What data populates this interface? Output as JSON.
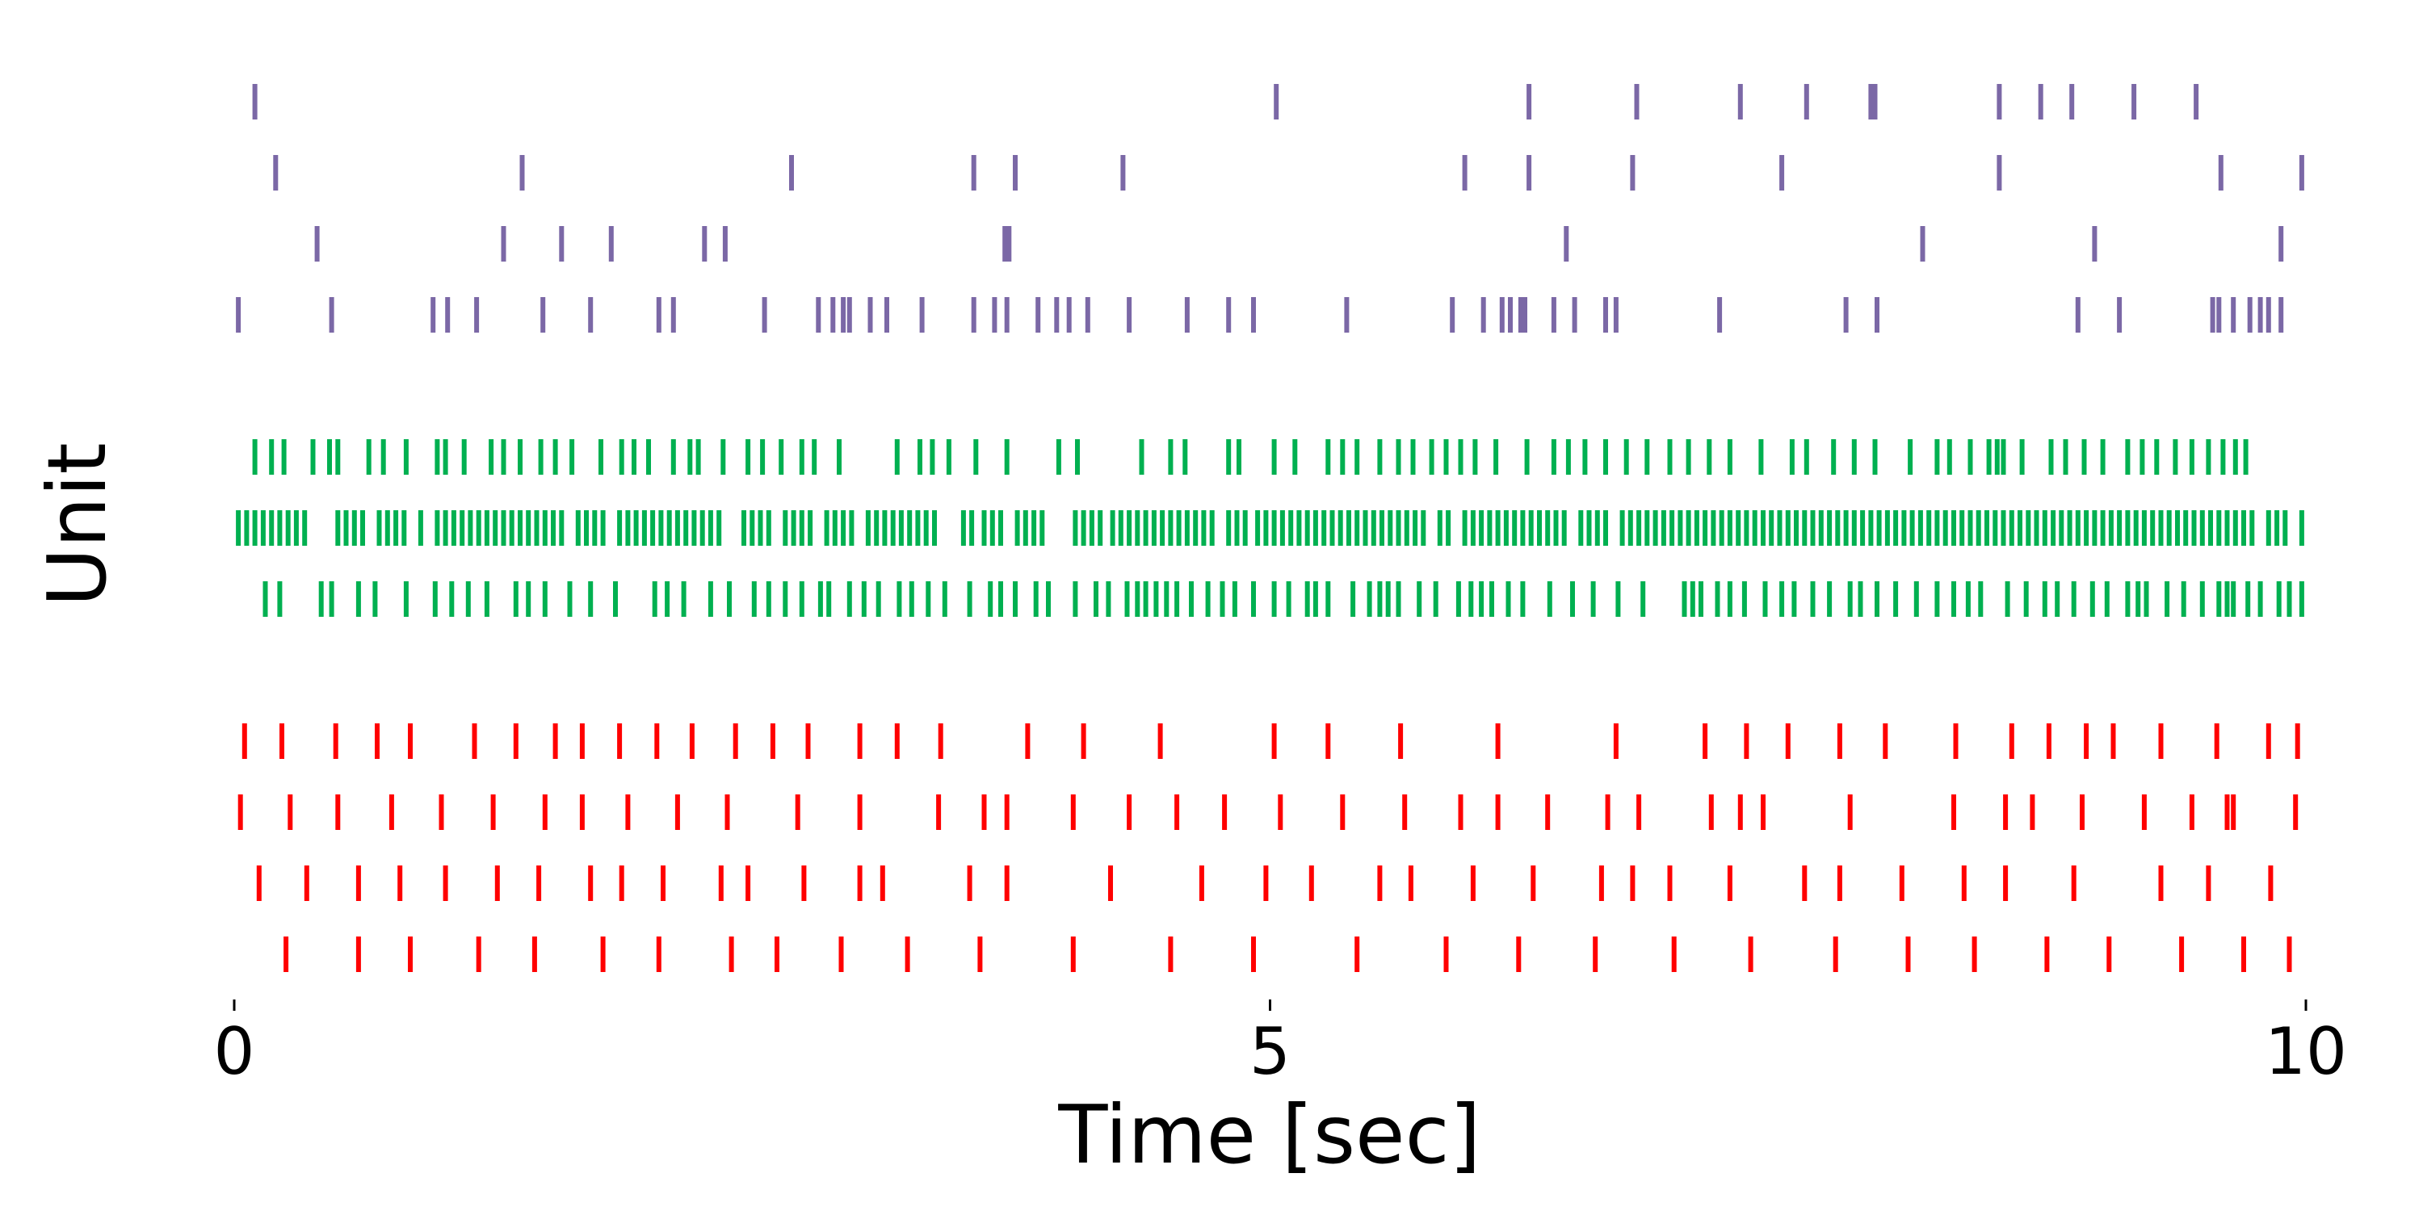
{
  "chart_data": {
    "type": "raster",
    "xlabel": "Time [sec]",
    "ylabel": "Unit",
    "xlim": [
      0,
      10
    ],
    "xticks": [
      0,
      5,
      10
    ],
    "xtick_labels": [
      "0",
      "5",
      "10"
    ],
    "show_y_axis": false,
    "grid": false,
    "groups": [
      {
        "color": "#ff0000",
        "units": [
          {
            "spikes": [
              0.25,
              0.6,
              0.85,
              1.18,
              1.45,
              1.78,
              2.05,
              2.4,
              2.62,
              2.93,
              3.25,
              3.6,
              4.05,
              4.52,
              4.92,
              5.42,
              5.85,
              6.2,
              6.57,
              6.95,
              7.32,
              7.73,
              8.08,
              8.4,
              8.75,
              9.05,
              9.4,
              9.7,
              9.92
            ]
          },
          {
            "spikes": [
              0.12,
              0.35,
              0.6,
              0.8,
              1.02,
              1.27,
              1.47,
              1.72,
              1.87,
              2.07,
              2.35,
              2.48,
              2.75,
              3.02,
              3.13,
              3.55,
              3.73,
              4.23,
              4.67,
              4.98,
              5.2,
              5.53,
              5.68,
              5.98,
              6.27,
              6.6,
              6.75,
              6.93,
              7.22,
              7.58,
              7.75,
              8.05,
              8.35,
              8.55,
              8.88,
              9.3,
              9.53,
              9.83
            ]
          },
          {
            "spikes": [
              0.03,
              0.27,
              0.5,
              0.76,
              1.0,
              1.25,
              1.5,
              1.68,
              1.9,
              2.14,
              2.38,
              2.72,
              3.02,
              3.4,
              3.62,
              3.73,
              4.05,
              4.32,
              4.55,
              4.78,
              5.05,
              5.35,
              5.65,
              5.92,
              6.1,
              6.34,
              6.63,
              6.78,
              7.13,
              7.27,
              7.38,
              7.8,
              8.3,
              8.55,
              8.68,
              8.92,
              9.22,
              9.45,
              9.62,
              9.65,
              9.95
            ]
          },
          {
            "spikes": [
              0.05,
              0.23,
              0.49,
              0.69,
              0.85,
              1.16,
              1.36,
              1.55,
              1.68,
              1.86,
              2.04,
              2.21,
              2.42,
              2.6,
              2.77,
              3.02,
              3.2,
              3.41,
              3.83,
              4.1,
              4.47,
              5.02,
              5.28,
              5.63,
              6.1,
              6.67,
              7.1,
              7.3,
              7.5,
              7.75,
              7.97,
              8.31,
              8.58,
              8.76,
              8.94,
              9.07,
              9.3,
              9.57,
              9.82,
              9.96
            ]
          }
        ]
      },
      {
        "color": "#00b050",
        "units": [
          {
            "spikes": [
              0.15,
              0.22,
              0.42,
              0.47,
              0.6,
              0.68,
              0.83,
              0.97,
              1.05,
              1.13,
              1.22,
              1.36,
              1.42,
              1.5,
              1.62,
              1.72,
              1.84,
              2.03,
              2.09,
              2.17,
              2.3,
              2.39,
              2.51,
              2.58,
              2.66,
              2.74,
              2.83,
              2.87,
              2.97,
              3.04,
              3.11,
              3.21,
              3.27,
              3.35,
              3.43,
              3.55,
              3.65,
              3.7,
              3.77,
              3.87,
              3.93,
              4.06,
              4.16,
              4.22,
              4.31,
              4.36,
              4.4,
              4.45,
              4.5,
              4.55,
              4.62,
              4.7,
              4.77,
              4.83,
              4.92,
              5.02,
              5.09,
              5.18,
              5.22,
              5.28,
              5.4,
              5.48,
              5.53,
              5.57,
              5.62,
              5.72,
              5.8,
              5.91,
              5.97,
              6.02,
              6.07,
              6.15,
              6.22,
              6.35,
              6.46,
              6.56,
              6.68,
              6.8,
              7.0,
              7.04,
              7.08,
              7.16,
              7.22,
              7.29,
              7.39,
              7.47,
              7.53,
              7.62,
              7.7,
              7.8,
              7.85,
              7.93,
              8.02,
              8.12,
              8.22,
              8.3,
              8.37,
              8.43,
              8.56,
              8.65,
              8.74,
              8.8,
              8.88,
              8.97,
              9.04,
              9.14,
              9.19,
              9.23,
              9.33,
              9.41,
              9.5,
              9.58,
              9.62,
              9.65,
              9.72,
              9.78,
              9.87,
              9.92,
              9.98
            ]
          },
          {
            "spikes": [
              0.02,
              0.06,
              0.1,
              0.14,
              0.18,
              0.22,
              0.26,
              0.3,
              0.34,
              0.5,
              0.54,
              0.58,
              0.62,
              0.7,
              0.74,
              0.78,
              0.82,
              0.9,
              0.98,
              1.02,
              1.06,
              1.1,
              1.14,
              1.18,
              1.22,
              1.26,
              1.3,
              1.34,
              1.38,
              1.42,
              1.46,
              1.5,
              1.54,
              1.58,
              1.66,
              1.7,
              1.74,
              1.78,
              1.86,
              1.9,
              1.94,
              1.98,
              2.02,
              2.06,
              2.1,
              2.14,
              2.18,
              2.22,
              2.26,
              2.3,
              2.34,
              2.46,
              2.5,
              2.54,
              2.58,
              2.66,
              2.7,
              2.74,
              2.78,
              2.86,
              2.9,
              2.94,
              2.98,
              3.06,
              3.1,
              3.14,
              3.18,
              3.22,
              3.26,
              3.3,
              3.34,
              3.38,
              3.52,
              3.56,
              3.62,
              3.66,
              3.7,
              3.78,
              3.82,
              3.86,
              3.9,
              4.06,
              4.1,
              4.14,
              4.18,
              4.24,
              4.28,
              4.32,
              4.36,
              4.4,
              4.44,
              4.48,
              4.52,
              4.56,
              4.6,
              4.64,
              4.68,
              4.72,
              4.8,
              4.84,
              4.88,
              4.94,
              4.98,
              5.02,
              5.06,
              5.1,
              5.14,
              5.18,
              5.22,
              5.26,
              5.3,
              5.34,
              5.38,
              5.42,
              5.46,
              5.5,
              5.54,
              5.58,
              5.62,
              5.66,
              5.7,
              5.74,
              5.82,
              5.86,
              5.94,
              5.98,
              6.02,
              6.06,
              6.1,
              6.14,
              6.18,
              6.22,
              6.26,
              6.3,
              6.34,
              6.38,
              6.42,
              6.5,
              6.54,
              6.58,
              6.62,
              6.7,
              6.74,
              6.78,
              6.82,
              6.86,
              6.9,
              6.94,
              6.98,
              7.02,
              7.06,
              7.1,
              7.14,
              7.18,
              7.22,
              7.26,
              7.3,
              7.34,
              7.38,
              7.42,
              7.46,
              7.5,
              7.54,
              7.58,
              7.62,
              7.66,
              7.7,
              7.74,
              7.78,
              7.82,
              7.86,
              7.9,
              7.94,
              7.98,
              8.02,
              8.06,
              8.1,
              8.14,
              8.18,
              8.22,
              8.26,
              8.3,
              8.34,
              8.38,
              8.42,
              8.46,
              8.5,
              8.54,
              8.58,
              8.62,
              8.66,
              8.7,
              8.74,
              8.78,
              8.82,
              8.86,
              8.9,
              8.94,
              8.98,
              9.02,
              9.06,
              9.1,
              9.14,
              9.18,
              9.22,
              9.26,
              9.3,
              9.34,
              9.38,
              9.42,
              9.46,
              9.5,
              9.54,
              9.58,
              9.62,
              9.66,
              9.7,
              9.74,
              9.82,
              9.86,
              9.9,
              9.98
            ]
          },
          {
            "spikes": [
              0.1,
              0.18,
              0.24,
              0.38,
              0.46,
              0.5,
              0.65,
              0.72,
              0.83,
              0.98,
              1.02,
              1.11,
              1.24,
              1.3,
              1.38,
              1.48,
              1.55,
              1.63,
              1.77,
              1.87,
              1.93,
              2.0,
              2.12,
              2.2,
              2.24,
              2.36,
              2.48,
              2.55,
              2.64,
              2.74,
              2.8,
              2.92,
              3.2,
              3.31,
              3.37,
              3.45,
              3.58,
              3.73,
              3.98,
              4.07,
              4.38,
              4.52,
              4.59,
              4.8,
              4.85,
              5.02,
              5.12,
              5.28,
              5.35,
              5.42,
              5.53,
              5.62,
              5.69,
              5.78,
              5.85,
              5.92,
              5.99,
              6.09,
              6.24,
              6.37,
              6.44,
              6.52,
              6.62,
              6.72,
              6.82,
              6.93,
              7.02,
              7.12,
              7.22,
              7.37,
              7.52,
              7.59,
              7.72,
              7.82,
              7.92,
              8.09,
              8.22,
              8.28,
              8.38,
              8.47,
              8.51,
              8.54,
              8.63,
              8.77,
              8.84,
              8.93,
              9.02,
              9.14,
              9.21,
              9.28,
              9.37,
              9.45,
              9.53,
              9.6,
              9.66,
              9.71
            ]
          }
        ]
      },
      {
        "color": "#7b68a6",
        "units": [
          {
            "spikes": [
              0.02,
              0.47,
              0.96,
              1.03,
              1.17,
              1.49,
              1.72,
              2.05,
              2.12,
              2.56,
              2.82,
              2.89,
              2.94,
              2.97,
              3.07,
              3.15,
              3.32,
              3.57,
              3.67,
              3.73,
              3.88,
              3.97,
              4.03,
              4.12,
              4.32,
              4.6,
              4.8,
              4.92,
              5.37,
              5.88,
              6.03,
              6.12,
              6.16,
              6.21,
              6.23,
              6.37,
              6.47,
              6.62,
              6.67,
              7.17,
              7.78,
              7.93,
              8.9,
              9.1,
              9.55,
              9.58,
              9.65,
              9.73,
              9.78,
              9.82,
              9.88
            ]
          },
          {
            "spikes": [
              0.4,
              1.3,
              1.58,
              1.82,
              2.27,
              2.37,
              3.72,
              3.74,
              6.43,
              8.15,
              8.98,
              9.88
            ]
          },
          {
            "spikes": [
              0.2,
              1.39,
              2.69,
              3.57,
              3.77,
              4.29,
              5.94,
              6.25,
              6.75,
              7.47,
              8.52,
              9.59,
              9.98
            ]
          },
          {
            "spikes": [
              0.1,
              5.03,
              6.25,
              6.77,
              7.27,
              7.59,
              7.9,
              7.92,
              8.52,
              8.72,
              8.87,
              9.17,
              9.47
            ]
          }
        ]
      }
    ]
  }
}
